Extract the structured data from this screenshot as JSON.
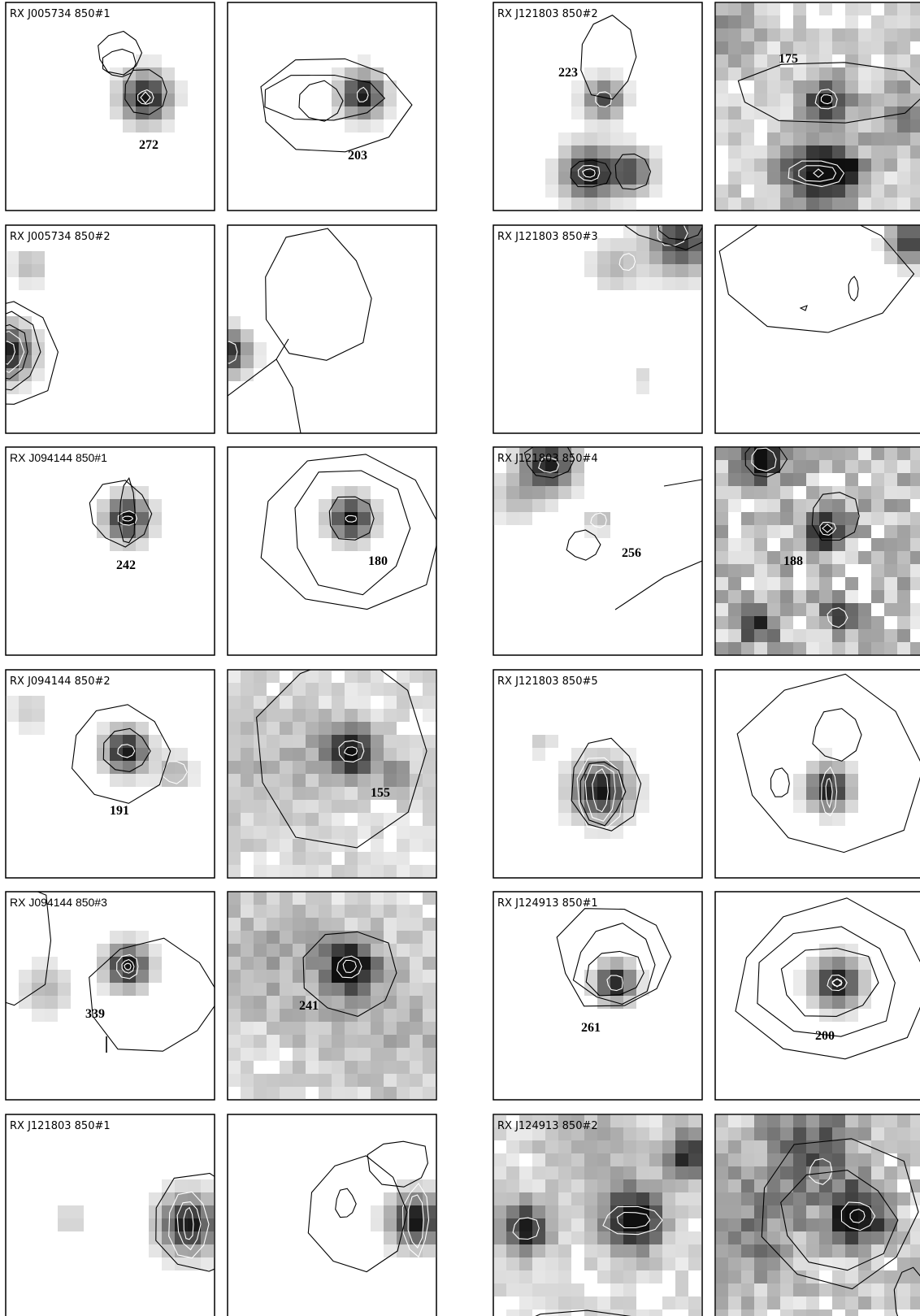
{
  "figure": {
    "panels": [
      {
        "title": "RX J005734 850#1",
        "label": "272"
      },
      {
        "title": "",
        "label": "203"
      },
      {
        "title": "RX J121803 850#2",
        "label": "223"
      },
      {
        "title": "",
        "label": "175"
      },
      {
        "title": "RX J005734 850#2",
        "label": ""
      },
      {
        "title": "",
        "label": ""
      },
      {
        "title": "RX J121803 850#3",
        "label": ""
      },
      {
        "title": "",
        "label": ""
      },
      {
        "title": "RX J094144 850#1",
        "label": "242"
      },
      {
        "title": "",
        "label": "180"
      },
      {
        "title": "RX J121803 850#4",
        "label": "256"
      },
      {
        "title": "",
        "label": "188"
      },
      {
        "title": "RX J094144 850#2",
        "label": "191"
      },
      {
        "title": "",
        "label": "155"
      },
      {
        "title": "RX J121803 850#5",
        "label": ""
      },
      {
        "title": "",
        "label": ""
      },
      {
        "title": "RX J094144 850#3",
        "label": "339"
      },
      {
        "title": "",
        "label": "241"
      },
      {
        "title": "RX J124913 850#1",
        "label": "261"
      },
      {
        "title": "",
        "label": "200"
      },
      {
        "title": "RX J121803 850#1",
        "label": ""
      },
      {
        "title": "",
        "label": ""
      },
      {
        "title": "RX J124913 850#2",
        "label": ""
      },
      {
        "title": "",
        "label": ""
      }
    ]
  }
}
